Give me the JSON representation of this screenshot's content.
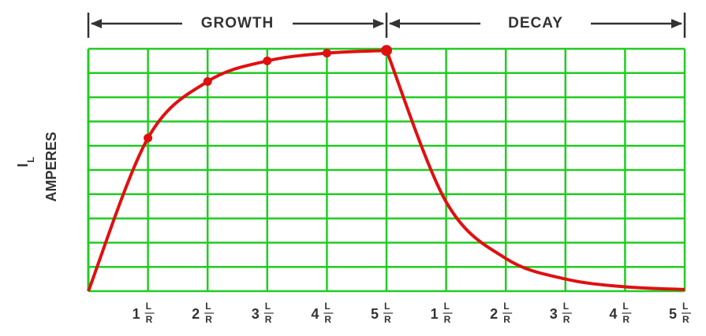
{
  "chart_data": {
    "type": "line",
    "sections": [
      "GROWTH",
      "DECAY"
    ],
    "ylabel_symbol": "I",
    "ylabel_subscript": "L",
    "ylabel": "AMPERES",
    "tick_fraction": {
      "numerator": "L",
      "denominator": "R"
    },
    "xlim": [
      0,
      10
    ],
    "ylim": [
      0,
      100
    ],
    "xticks": [
      {
        "value": 1,
        "label": "1"
      },
      {
        "value": 2,
        "label": "2"
      },
      {
        "value": 3,
        "label": "3"
      },
      {
        "value": 4,
        "label": "4"
      },
      {
        "value": 5,
        "label": "5"
      },
      {
        "value": 6,
        "label": "1"
      },
      {
        "value": 7,
        "label": "2"
      },
      {
        "value": 8,
        "label": "3"
      },
      {
        "value": 9,
        "label": "4"
      },
      {
        "value": 10,
        "label": "5"
      }
    ],
    "yticks": [
      0,
      10,
      20,
      30,
      40,
      50,
      60,
      70,
      80,
      90,
      100
    ],
    "grid": true,
    "grid_color": "#22cc22",
    "series": [
      {
        "name": "GROWTH",
        "color": "#e01010",
        "markers": true,
        "x": [
          0,
          1,
          2,
          3,
          4,
          5
        ],
        "values": [
          0,
          63.2,
          86.5,
          95,
          98.2,
          99.3
        ]
      },
      {
        "name": "DECAY",
        "color": "#e01010",
        "markers": false,
        "x": [
          5,
          6,
          7,
          8,
          9,
          10
        ],
        "values": [
          99.3,
          36.8,
          13.5,
          5,
          1.8,
          0.7
        ]
      }
    ]
  }
}
